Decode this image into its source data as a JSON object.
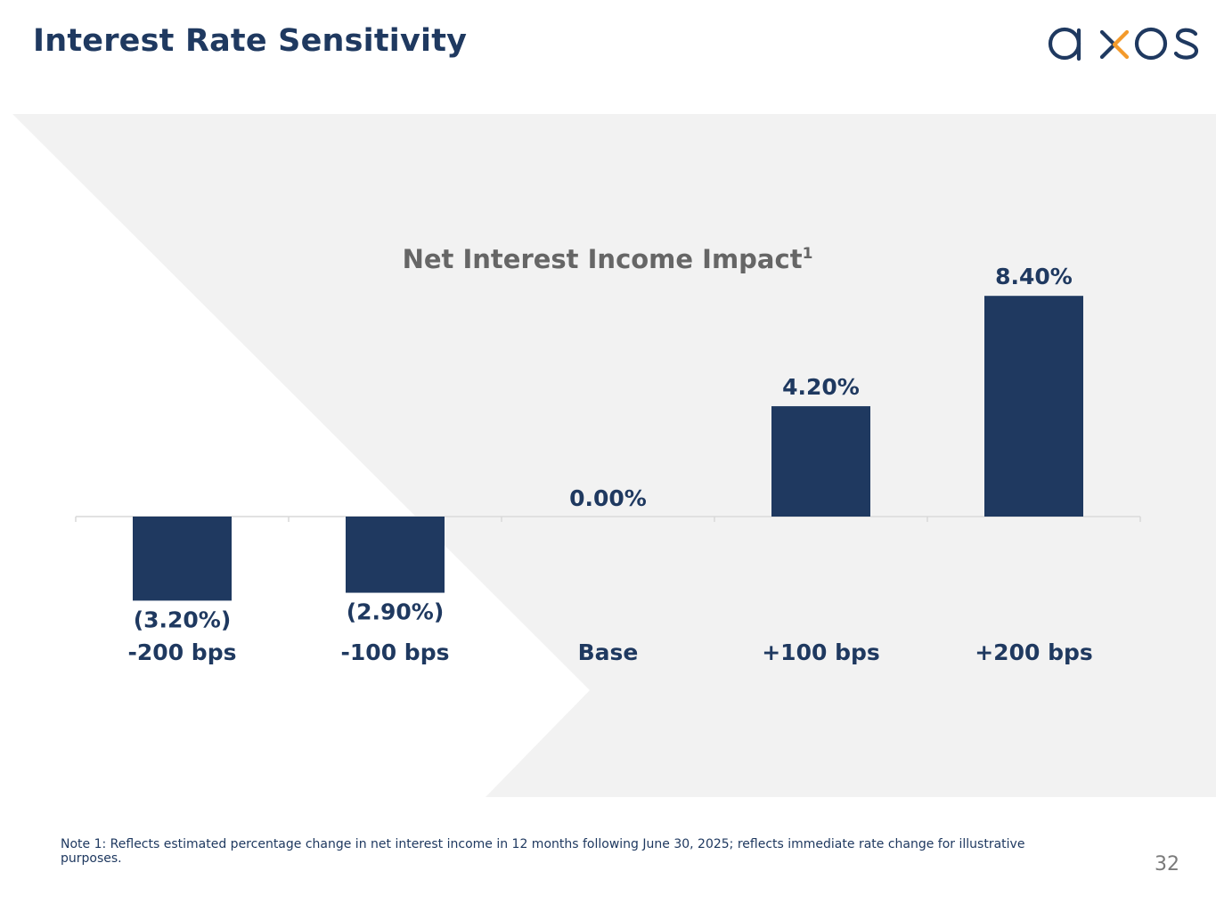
{
  "slide": {
    "title": "Interest Rate Sensitivity",
    "logo_text": "axos",
    "footnote": "Note 1: Reflects estimated percentage change in net interest income in 12 months following June 30, 2025; reflects immediate rate change for illustrative purposes.",
    "page_number": "32"
  },
  "colors": {
    "bar": "#1f3960",
    "title": "#1f3960",
    "chart_title": "#666666",
    "background_panel": "#f2f2f2",
    "logo_accent": "#f39a2b"
  },
  "chart_data": {
    "type": "bar",
    "title": "Net Interest Income Impact",
    "title_superscript": "1",
    "categories": [
      "-200 bps",
      "-100 bps",
      "Base",
      "+100 bps",
      "+200 bps"
    ],
    "values": [
      -3.2,
      -2.9,
      0.0,
      4.2,
      8.4
    ],
    "data_labels": [
      "(3.20%)",
      "(2.90%)",
      "0.00%",
      "4.20%",
      "8.40%"
    ],
    "unit": "%",
    "ylim": [
      -4.5,
      9
    ],
    "grid": false,
    "legend": "none"
  }
}
